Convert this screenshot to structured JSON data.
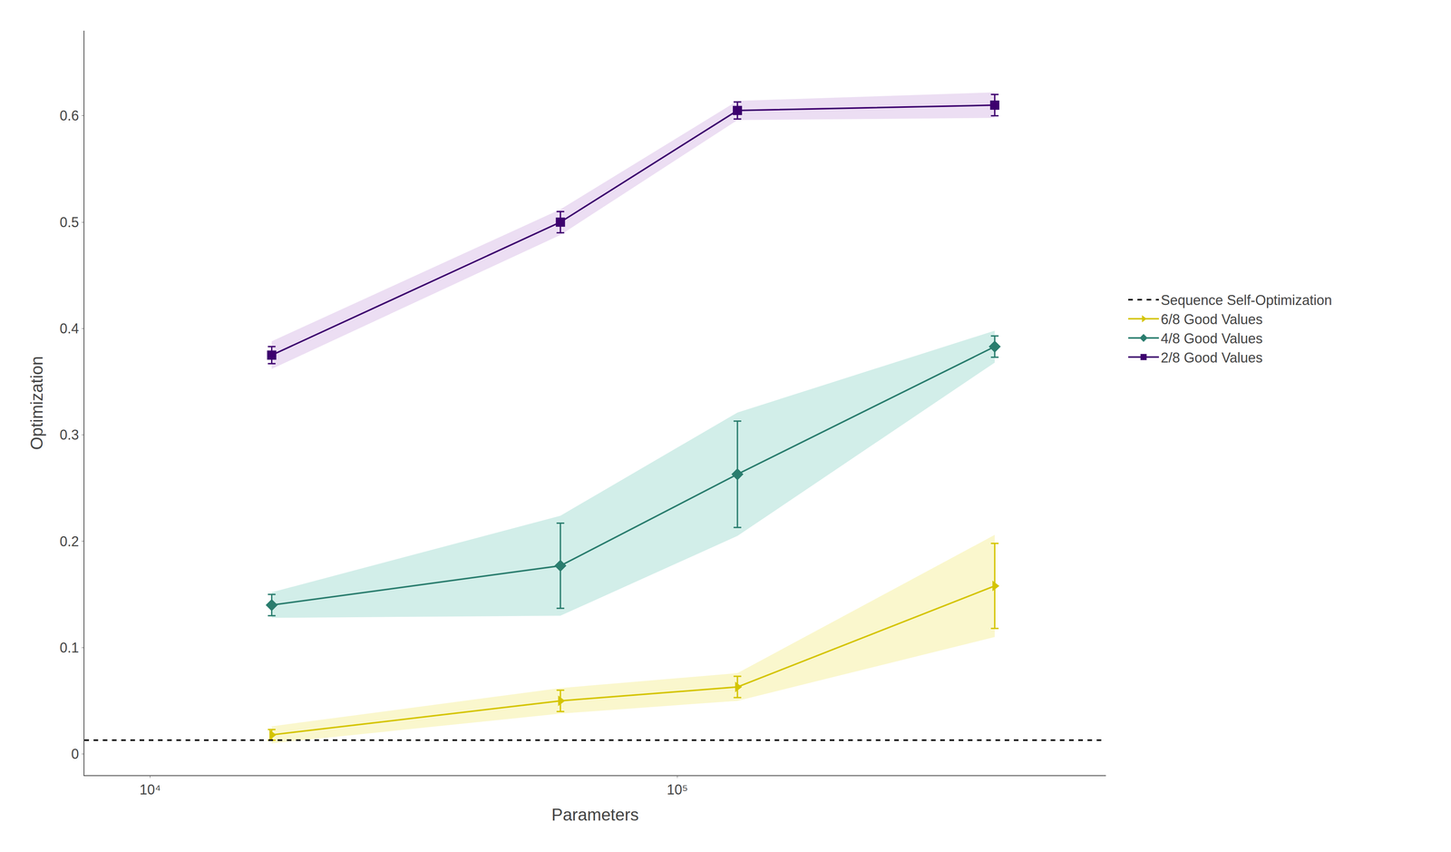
{
  "chart_data": {
    "type": "line",
    "xlabel": "Parameters",
    "ylabel": "Optimization",
    "log": "x",
    "grid": false,
    "legend": "right",
    "xlim": [
      7500,
      650000
    ],
    "xticks": [
      {
        "value": 10000,
        "label": "10⁴"
      },
      {
        "value": 100000,
        "label": "10⁵"
      }
    ],
    "ylim": [
      -0.02,
      0.68
    ],
    "yticks": [
      0.0,
      0.1,
      0.2,
      0.3,
      0.4,
      0.5,
      0.6
    ],
    "x": [
      17000,
      60000,
      130000,
      400000
    ],
    "series": [
      {
        "name": "2/8 Good Values",
        "color": "#3d006e",
        "fill_color": "#c9a0dc",
        "marker": "square",
        "values": [
          0.375,
          0.5,
          0.605,
          0.61
        ],
        "error": [
          0.008,
          0.01,
          0.008,
          0.01
        ],
        "band_lo": [
          0.362,
          0.488,
          0.596,
          0.598
        ],
        "band_hi": [
          0.388,
          0.512,
          0.614,
          0.622
        ]
      },
      {
        "name": "4/8 Good Values",
        "color": "#2a7d6e",
        "fill_color": "#7ecfc0",
        "marker": "diamond",
        "values": [
          0.14,
          0.177,
          0.263,
          0.383
        ],
        "error": [
          0.01,
          0.04,
          0.05,
          0.01
        ],
        "band_lo": [
          0.128,
          0.13,
          0.205,
          0.368
        ],
        "band_hi": [
          0.152,
          0.224,
          0.321,
          0.398
        ]
      },
      {
        "name": "6/8 Good Values",
        "color": "#d4c400",
        "fill_color": "#f0e870",
        "marker": "triangle-right",
        "values": [
          0.018,
          0.05,
          0.063,
          0.158
        ],
        "error": [
          0.005,
          0.01,
          0.01,
          0.04
        ],
        "band_lo": [
          0.01,
          0.038,
          0.05,
          0.11
        ],
        "band_hi": [
          0.026,
          0.062,
          0.076,
          0.206
        ]
      }
    ],
    "reference_line": {
      "name": "Sequence Self-Optimization",
      "y": 0.013,
      "color": "#000000",
      "line_style": "dash"
    }
  }
}
